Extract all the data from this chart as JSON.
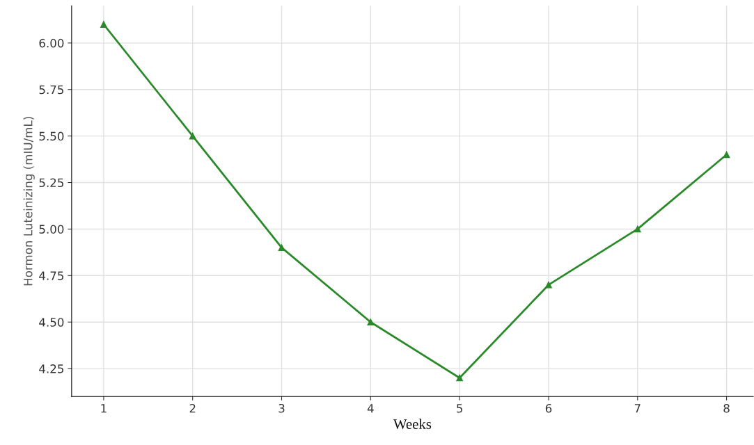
{
  "chart_data": {
    "type": "line",
    "xlabel": "Weeks",
    "ylabel": "Hormon Luteinizing (mIU/mL)",
    "x": [
      1,
      2,
      3,
      4,
      5,
      6,
      7,
      8
    ],
    "series": [
      {
        "color": "#2a8a2a",
        "values": [
          6.1,
          5.5,
          4.9,
          4.5,
          4.2,
          4.7,
          5.0,
          5.4
        ]
      }
    ],
    "xlim": [
      0.64,
      8.3
    ],
    "ylim": [
      4.1,
      6.2
    ],
    "xticks": [
      1,
      2,
      3,
      4,
      5,
      6,
      7,
      8
    ],
    "yticks": [
      {
        "value": 4.25,
        "label": "4.25"
      },
      {
        "value": 4.5,
        "label": "4.50"
      },
      {
        "value": 4.75,
        "label": "4.75"
      },
      {
        "value": 5.0,
        "label": "5.00"
      },
      {
        "value": 5.25,
        "label": "5.25"
      },
      {
        "value": 5.5,
        "label": "5.50"
      },
      {
        "value": 5.75,
        "label": "5.75"
      },
      {
        "value": 6.0,
        "label": "6.00"
      }
    ],
    "grid": true,
    "marker": "triangle",
    "line_style": "solid"
  }
}
